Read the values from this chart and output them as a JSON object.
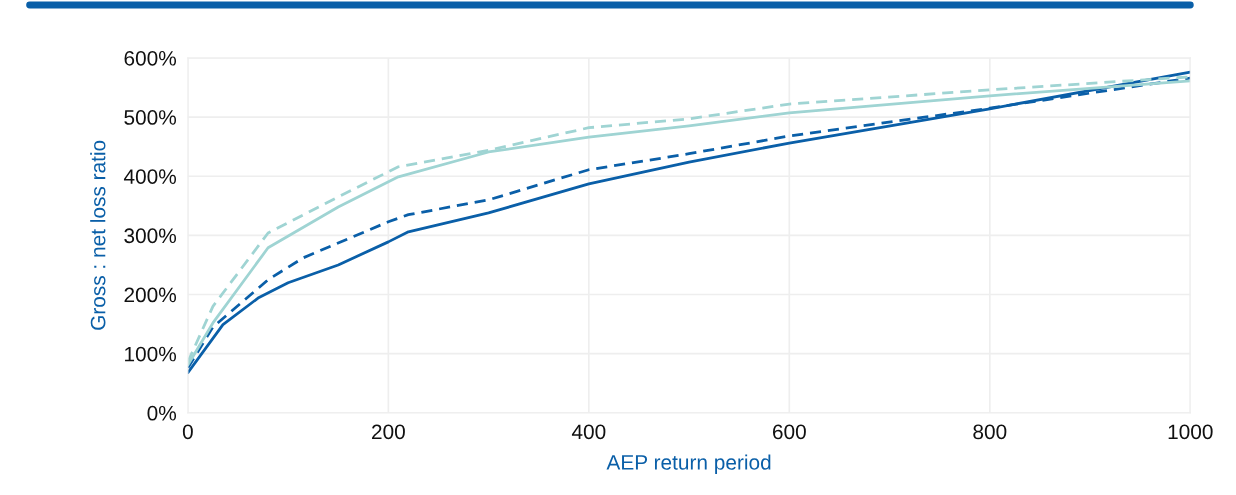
{
  "chart_data": {
    "type": "line",
    "xlabel": "AEP return period",
    "ylabel": "Gross : net loss ratio",
    "xlim": [
      0,
      1000
    ],
    "xticks": [
      0,
      200,
      400,
      600,
      800,
      1000
    ],
    "ylim": [
      0,
      600
    ],
    "yticks": [
      {
        "value": 0,
        "label": "0%"
      },
      {
        "value": 100,
        "label": "100%"
      },
      {
        "value": 200,
        "label": "200%"
      },
      {
        "value": 300,
        "label": "300%"
      },
      {
        "value": 400,
        "label": "400%"
      },
      {
        "value": 500,
        "label": "500%"
      },
      {
        "value": 600,
        "label": "600%"
      }
    ],
    "grid": true,
    "legend": false,
    "series": [
      {
        "color": "#0a5fa8",
        "line_style": "solid",
        "x": [
          0,
          35,
          70,
          100,
          150,
          200,
          220,
          300,
          400,
          500,
          600,
          800,
          1000
        ],
        "values": [
          68,
          149,
          194,
          220,
          250,
          289,
          306,
          338,
          387,
          424,
          456,
          514,
          576
        ]
      },
      {
        "color": "#0a5fa8",
        "line_style": "dashed",
        "x": [
          0,
          25,
          80,
          115,
          200,
          220,
          300,
          400,
          500,
          600,
          800,
          1000
        ],
        "values": [
          76,
          145,
          225,
          262,
          323,
          335,
          360,
          411,
          438,
          468,
          515,
          566
        ]
      },
      {
        "color": "#9fd4d3",
        "line_style": "solid",
        "x": [
          0,
          25,
          80,
          150,
          210,
          300,
          400,
          500,
          600,
          800,
          1000
        ],
        "values": [
          81,
          152,
          279,
          348,
          399,
          441,
          466,
          485,
          507,
          536,
          561
        ]
      },
      {
        "color": "#9fd4d3",
        "line_style": "dashed",
        "x": [
          0,
          25,
          80,
          150,
          210,
          300,
          400,
          500,
          600,
          800,
          1000
        ],
        "values": [
          86,
          180,
          304,
          365,
          416,
          444,
          482,
          497,
          522,
          546,
          568
        ]
      }
    ]
  }
}
